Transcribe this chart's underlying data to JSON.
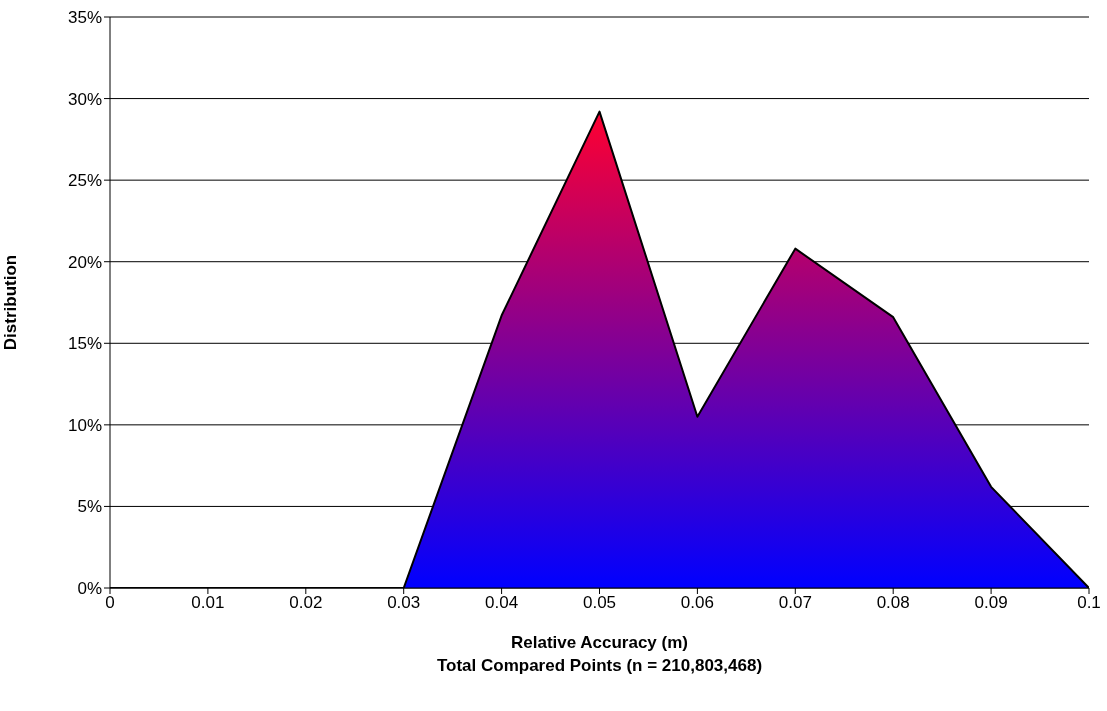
{
  "chart_data": {
    "type": "area",
    "xlabel": "Relative Accuracy (m)\nTotal Compared Points (n = 210,803,468)",
    "ylabel": "Distribution",
    "categories": [
      "0",
      "0.01",
      "0.02",
      "0.03",
      "0.04",
      "0.05",
      "0.06",
      "0.07",
      "0.08",
      "0.09",
      "0.1"
    ],
    "series": [
      {
        "color": "#ff0030",
        "values": [
          0,
          0,
          0,
          0,
          16.7,
          29.2,
          10.5,
          20.8,
          16.6,
          6.2,
          0
        ]
      }
    ],
    "ylim": [
      0,
      35
    ],
    "yticks": [
      {
        "value": 0,
        "label": "0%"
      },
      {
        "value": 5,
        "label": "5%"
      },
      {
        "value": 10,
        "label": "10%"
      },
      {
        "value": 15,
        "label": "15%"
      },
      {
        "value": 20,
        "label": "20%"
      },
      {
        "value": 25,
        "label": "25%"
      },
      {
        "value": 30,
        "label": "30%"
      },
      {
        "value": 35,
        "label": "35%"
      }
    ],
    "grid": "y",
    "legend": false
  }
}
